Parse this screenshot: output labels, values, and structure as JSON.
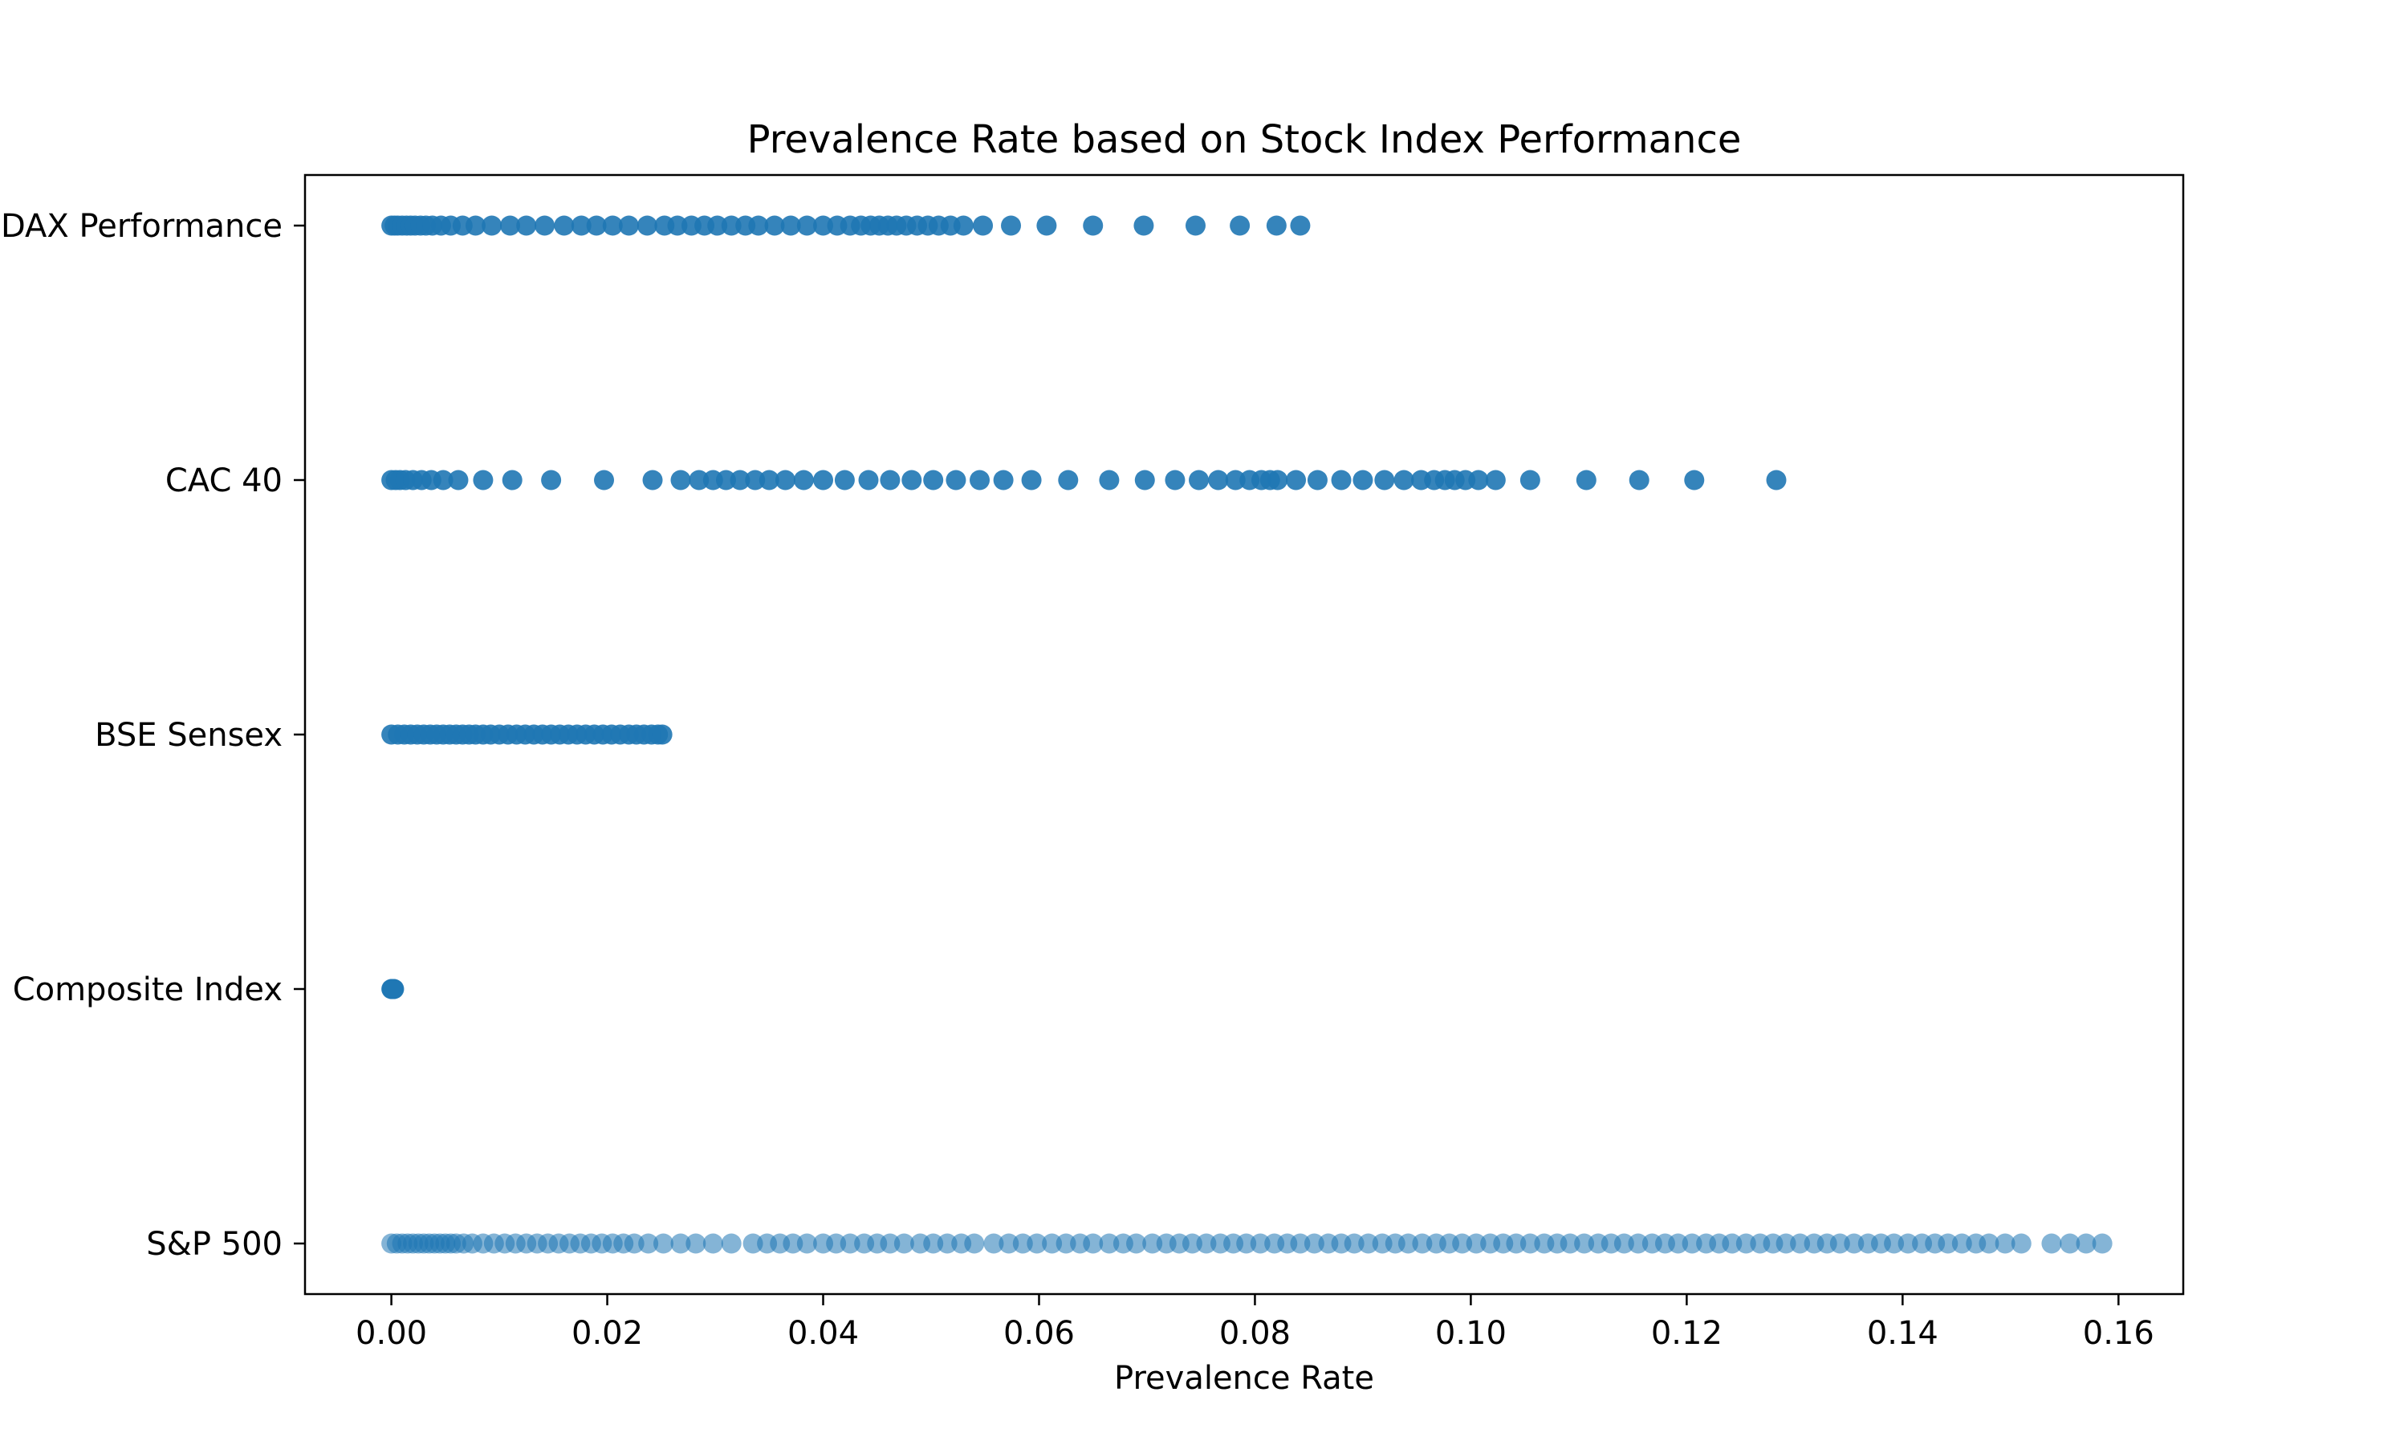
{
  "chart_data": {
    "type": "scatter",
    "title": "Prevalence Rate based on Stock Index Performance",
    "xlabel": "Prevalence Rate",
    "ylabel": "",
    "xlim": [
      -0.008,
      0.166
    ],
    "x_ticks": [
      0.0,
      0.02,
      0.04,
      0.06,
      0.08,
      0.1,
      0.12,
      0.14,
      0.16
    ],
    "x_tick_labels": [
      "0.00",
      "0.02",
      "0.04",
      "0.06",
      "0.08",
      "0.10",
      "0.12",
      "0.14",
      "0.16"
    ],
    "categories": [
      "DAX Performance",
      "CAC 40",
      "BSE Sensex",
      "Composite Index",
      "S&P 500"
    ],
    "grid": false,
    "marker_color": "#1f77b4",
    "series": [
      {
        "category": "DAX Performance",
        "x": [
          0,
          0.0003,
          0.0006,
          0.001,
          0.0014,
          0.0018,
          0.0022,
          0.0027,
          0.0032,
          0.0038,
          0.0046,
          0.0055,
          0.0066,
          0.0078,
          0.0093,
          0.011,
          0.0125,
          0.0142,
          0.016,
          0.0176,
          0.019,
          0.0205,
          0.022,
          0.0237,
          0.0253,
          0.0265,
          0.0278,
          0.029,
          0.0302,
          0.0315,
          0.0328,
          0.034,
          0.0355,
          0.037,
          0.0385,
          0.04,
          0.0413,
          0.0425,
          0.0435,
          0.0444,
          0.0452,
          0.046,
          0.0468,
          0.0477,
          0.0487,
          0.0497,
          0.0507,
          0.0518,
          0.053,
          0.0548,
          0.0574,
          0.0607,
          0.065,
          0.0697,
          0.0745,
          0.0786,
          0.082,
          0.0842
        ]
      },
      {
        "category": "CAC 40",
        "x": [
          0,
          0.0004,
          0.0008,
          0.0013,
          0.002,
          0.0028,
          0.0037,
          0.0048,
          0.0062,
          0.0085,
          0.0112,
          0.0148,
          0.0197,
          0.0242,
          0.0268,
          0.0285,
          0.0298,
          0.031,
          0.0323,
          0.0337,
          0.035,
          0.0365,
          0.0382,
          0.04,
          0.042,
          0.0442,
          0.0462,
          0.0482,
          0.0502,
          0.0523,
          0.0545,
          0.0567,
          0.0593,
          0.0627,
          0.0665,
          0.0698,
          0.0726,
          0.0748,
          0.0766,
          0.0782,
          0.0795,
          0.0806,
          0.0814,
          0.0821,
          0.0838,
          0.0858,
          0.088,
          0.09,
          0.092,
          0.0938,
          0.0954,
          0.0966,
          0.0976,
          0.0985,
          0.0995,
          0.1007,
          0.1023,
          0.1055,
          0.1107,
          0.1156,
          0.1207,
          0.1283
        ]
      },
      {
        "category": "BSE Sensex",
        "x": [
          0,
          0.0006,
          0.0012,
          0.0018,
          0.0024,
          0.003,
          0.0036,
          0.0042,
          0.0048,
          0.0054,
          0.006,
          0.0066,
          0.0072,
          0.0078,
          0.0085,
          0.0092,
          0.01,
          0.0108,
          0.0116,
          0.0124,
          0.0132,
          0.014,
          0.0148,
          0.0156,
          0.0164,
          0.0172,
          0.018,
          0.0188,
          0.0196,
          0.0204,
          0.0212,
          0.022,
          0.0227,
          0.0234,
          0.0241,
          0.0247,
          0.0251
        ]
      },
      {
        "category": "Composite Index",
        "x": [
          0,
          5e-05,
          0.0001,
          0.00015,
          0.0002,
          0.00025
        ]
      },
      {
        "category": "S&P 500",
        "x": [
          0,
          0.0005,
          0.001,
          0.0015,
          0.002,
          0.0025,
          0.003,
          0.0035,
          0.004,
          0.0045,
          0.005,
          0.0055,
          0.006,
          0.0067,
          0.0075,
          0.0085,
          0.0095,
          0.0105,
          0.0115,
          0.0125,
          0.0135,
          0.0145,
          0.0155,
          0.0165,
          0.0175,
          0.0185,
          0.0195,
          0.0205,
          0.0215,
          0.0225,
          0.0238,
          0.0252,
          0.0268,
          0.0282,
          0.0298,
          0.0315,
          0.0335,
          0.0348,
          0.036,
          0.0372,
          0.0385,
          0.04,
          0.0412,
          0.0425,
          0.0438,
          0.045,
          0.0462,
          0.0475,
          0.049,
          0.0502,
          0.0515,
          0.0528,
          0.054,
          0.0558,
          0.0572,
          0.0585,
          0.0598,
          0.0612,
          0.0625,
          0.0638,
          0.065,
          0.0665,
          0.0678,
          0.069,
          0.0705,
          0.0718,
          0.073,
          0.0742,
          0.0755,
          0.0768,
          0.078,
          0.0792,
          0.0805,
          0.0818,
          0.083,
          0.0842,
          0.0855,
          0.0868,
          0.088,
          0.0892,
          0.0905,
          0.0918,
          0.093,
          0.0942,
          0.0955,
          0.0968,
          0.098,
          0.0992,
          0.1005,
          0.1018,
          0.103,
          0.1042,
          0.1055,
          0.1068,
          0.108,
          0.1092,
          0.1105,
          0.1118,
          0.113,
          0.1142,
          0.1155,
          0.1168,
          0.118,
          0.1192,
          0.1205,
          0.1218,
          0.123,
          0.1242,
          0.1255,
          0.1268,
          0.128,
          0.1292,
          0.1305,
          0.1318,
          0.133,
          0.1342,
          0.1355,
          0.1368,
          0.138,
          0.1392,
          0.1405,
          0.1418,
          0.143,
          0.1442,
          0.1455,
          0.1468,
          0.148,
          0.1495,
          0.151,
          0.1538,
          0.1555,
          0.157,
          0.1585
        ]
      }
    ]
  }
}
